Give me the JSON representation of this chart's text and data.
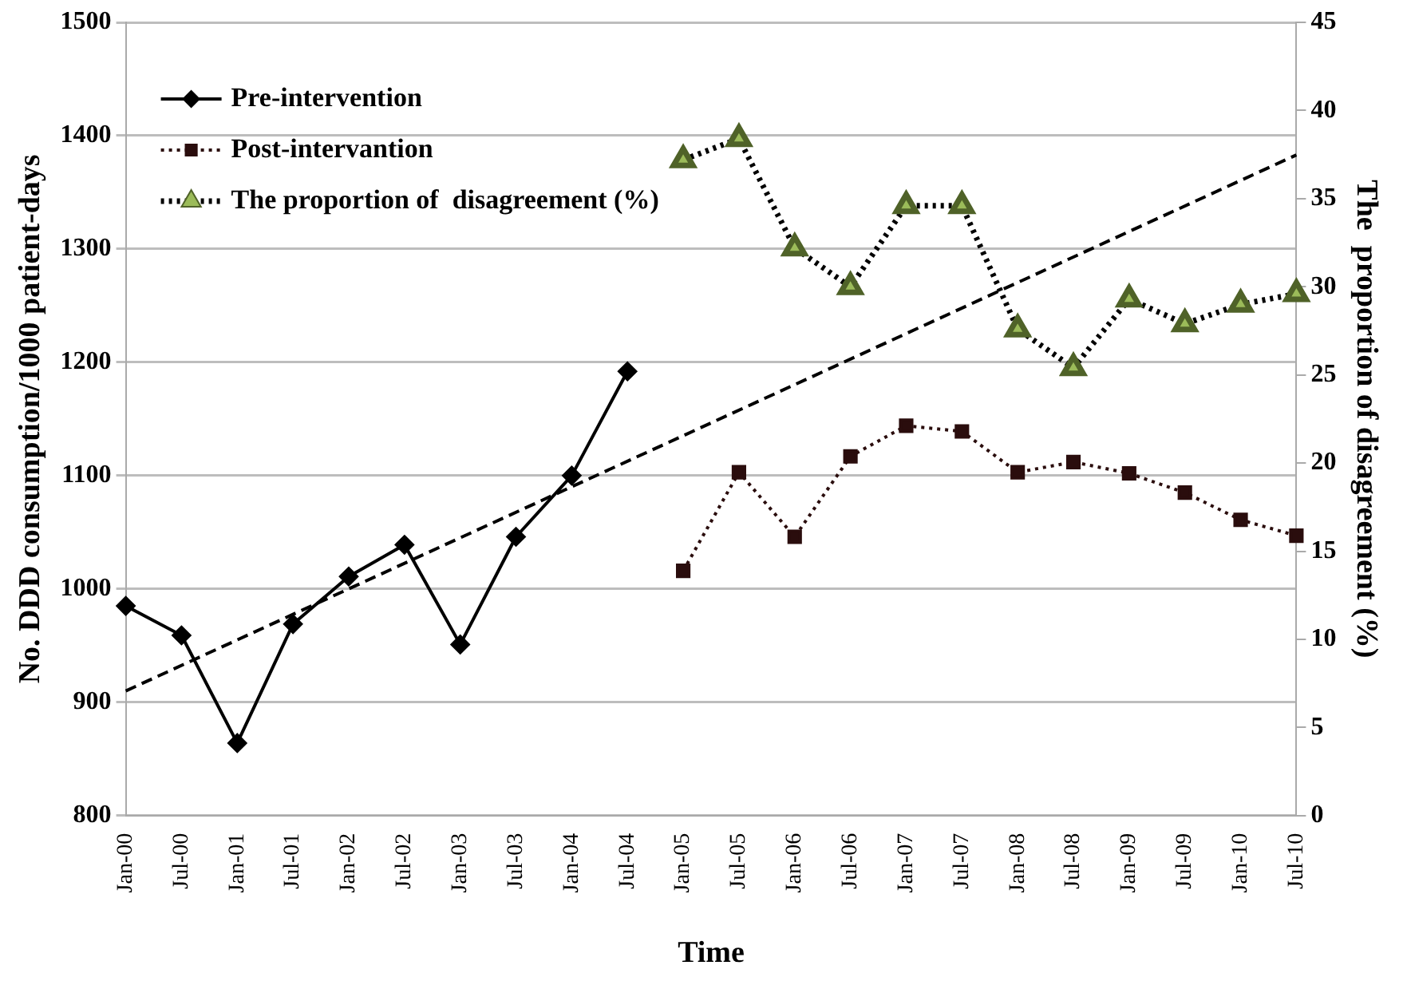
{
  "chart_data": {
    "type": "line",
    "xlabel": "Time",
    "ylabel": "No. DDD consumption/1000 patient-days",
    "y2label": "The  proportion of disagreement (%)",
    "categories": [
      "Jan-00",
      "Jul-00",
      "Jan-01",
      "Jul-01",
      "Jan-02",
      "Jul-02",
      "Jan-03",
      "Jul-03",
      "Jan-04",
      "Jul-04",
      "Jan-05",
      "Jul-05",
      "Jan-06",
      "Jul-06",
      "Jan-07",
      "Jul-07",
      "Jan-08",
      "Jul-08",
      "Jan-09",
      "Jul-09",
      "Jan-10",
      "Jul-10"
    ],
    "series": [
      {
        "name": "Pre-intervention",
        "color": "#000000",
        "marker": "diamond",
        "line_style": "solid",
        "values": [
          985,
          959,
          864,
          969,
          1011,
          1039,
          951,
          1046,
          1100,
          1192,
          null,
          null,
          null,
          null,
          null,
          null,
          null,
          null,
          null,
          null,
          null,
          null
        ]
      },
      {
        "name": "Post-intervantion",
        "color": "#2a0d0d",
        "marker": "square",
        "line_style": "dotted",
        "values": [
          null,
          null,
          null,
          null,
          null,
          null,
          null,
          null,
          null,
          null,
          1016,
          1103,
          1046,
          1117,
          1144,
          1139,
          1103,
          1112,
          1102,
          1085,
          1061,
          1047
        ]
      },
      {
        "name": "The proportion of  disagreement (%)",
        "color": "#9bbb59",
        "marker": "triangle",
        "line_style": "dotted",
        "axis": "y2",
        "values": [
          null,
          null,
          null,
          null,
          null,
          null,
          null,
          null,
          null,
          null,
          37.2,
          38.4,
          32.2,
          30.0,
          34.6,
          34.6,
          27.6,
          25.4,
          29.3,
          27.9,
          29.0,
          29.6
        ]
      },
      {
        "type": "line",
        "color": "#000000",
        "marker": "none",
        "line_style": "dashed",
        "x": [
          "Jan-00",
          "Jul-10"
        ],
        "values": [
          910,
          1383
        ]
      }
    ],
    "ylim": [
      800,
      1500
    ],
    "yticks": [
      800,
      900,
      1000,
      1100,
      1200,
      1300,
      1400,
      1500
    ],
    "y2lim": [
      0,
      45
    ],
    "y2ticks": [
      0,
      5,
      10,
      15,
      20,
      25,
      30,
      35,
      40,
      45
    ],
    "grid": "y",
    "legend": "top left"
  }
}
